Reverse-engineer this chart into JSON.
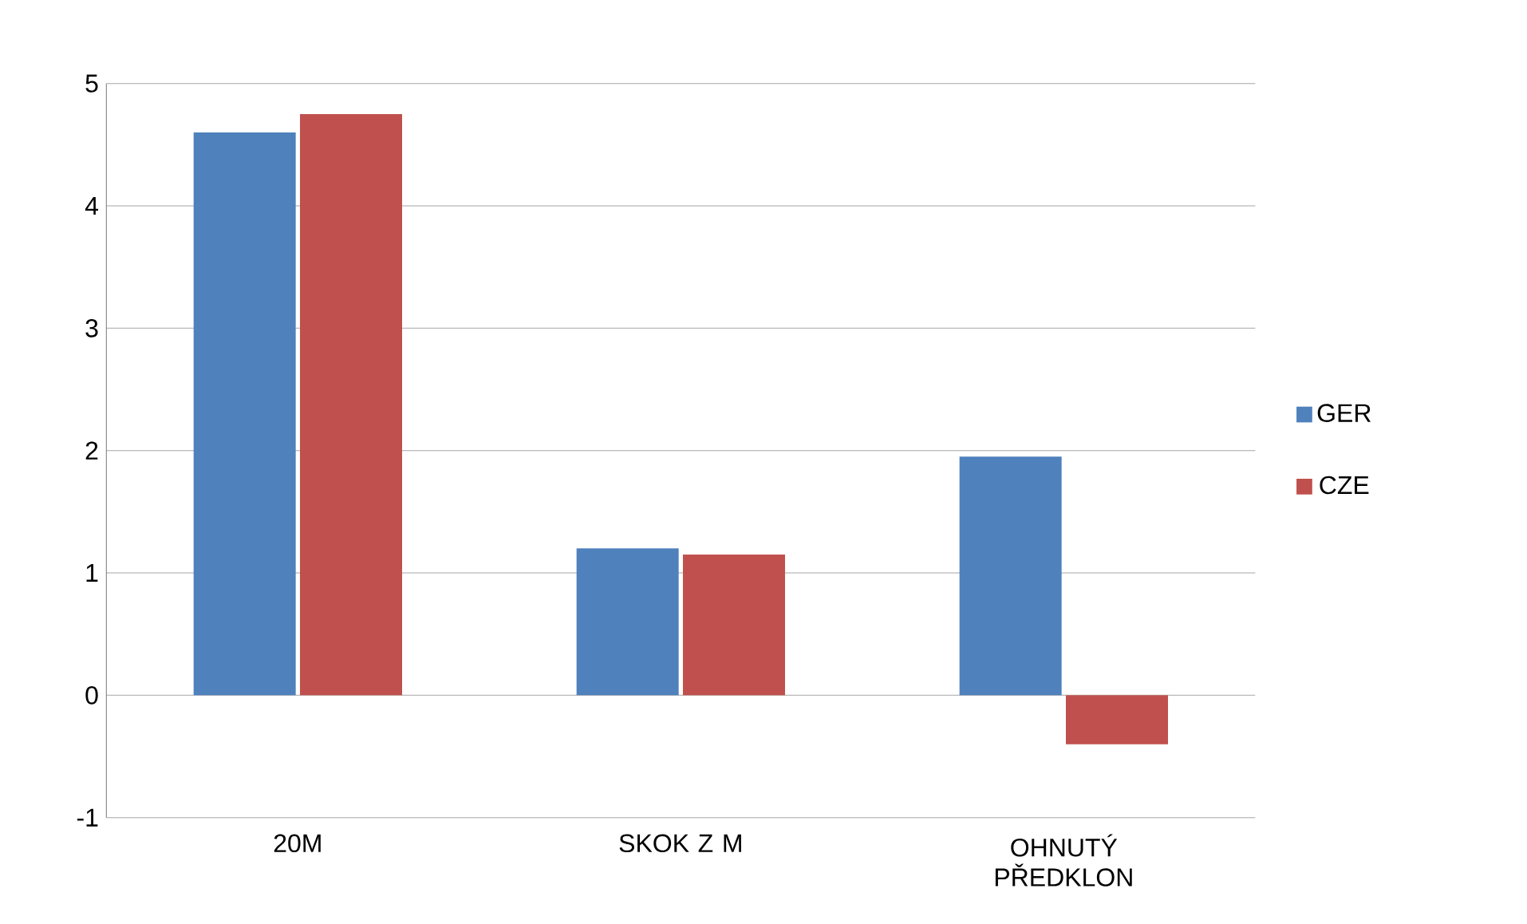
{
  "chart_data": {
    "type": "bar",
    "categories": [
      "20M",
      "SKOK Z M",
      "OHNUTÝ PŘEDKLON"
    ],
    "series": [
      {
        "name": "GER",
        "color": "#4f81bd",
        "values": [
          4.6,
          1.2,
          1.95
        ]
      },
      {
        "name": "CZE",
        "color": "#c0504d",
        "values": [
          4.75,
          1.15,
          -0.4
        ]
      }
    ],
    "ylim": [
      -1,
      5
    ],
    "yticks": [
      -1,
      0,
      1,
      2,
      3,
      4,
      5
    ],
    "grid": "y",
    "legend": "right"
  }
}
